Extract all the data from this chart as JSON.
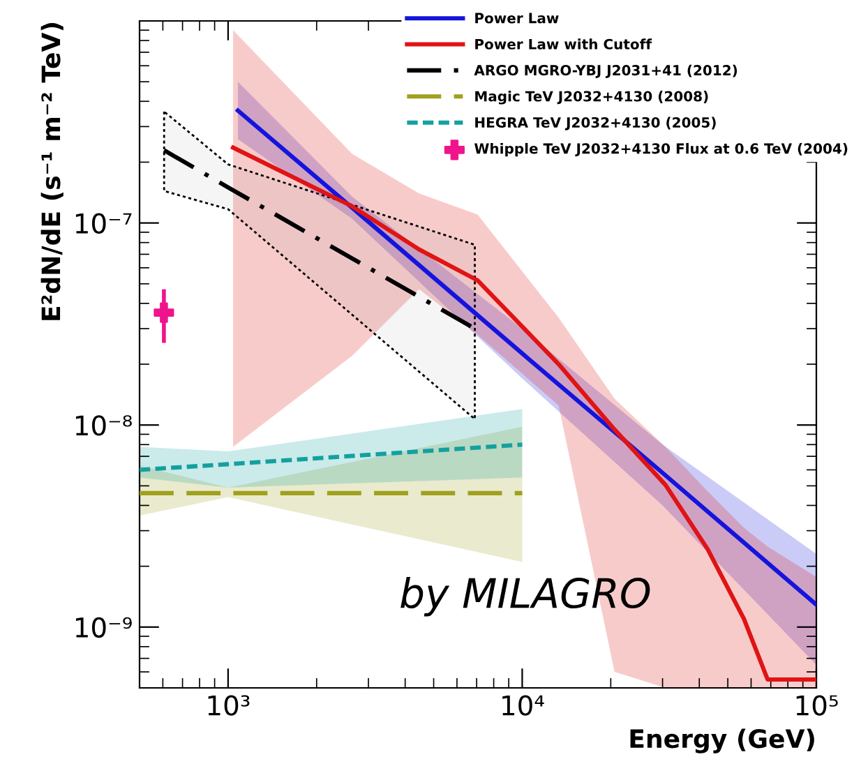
{
  "chart_data": {
    "type": "line",
    "xlabel": "Energy (GeV)",
    "ylabel": "E²dN/dE (s⁻¹ m⁻² TeV)",
    "log": "xy",
    "xlim": [
      500,
      100000
    ],
    "ylim": [
      5e-10,
      1e-06
    ],
    "xticks": [
      {
        "value": 1000,
        "label": "10³"
      },
      {
        "value": 10000,
        "label": "10⁴"
      },
      {
        "value": 100000,
        "label": "10⁵"
      }
    ],
    "yticks": [
      {
        "value": 1e-09,
        "label": "10⁻⁹"
      },
      {
        "value": 1e-08,
        "label": "10⁻⁸"
      },
      {
        "value": 1e-07,
        "label": "10⁻⁷"
      }
    ],
    "grid": false,
    "legend": "top right",
    "marker": "none",
    "annotations": [
      "by MILAGRO"
    ],
    "series": [
      {
        "name": "Power Law",
        "color": "#1414dc",
        "line_style": "solid",
        "x": [
          1080,
          2640,
          10000,
          30000,
          100000
        ],
        "values": [
          3.6e-07,
          1.19e-07,
          2.26e-08,
          5.8e-09,
          1.29e-09
        ],
        "lower": [
          2.6e-07,
          1.05e-07,
          1.7e-08,
          4e-09,
          6.5e-10
        ],
        "upper": [
          5e-07,
          1.35e-07,
          3e-08,
          8e-09,
          2.3e-09
        ]
      },
      {
        "name": "Power Law with Cutoff",
        "color": "#e01414",
        "line_style": "solid",
        "x": [
          1040,
          2640,
          4460,
          7050,
          13300,
          20600,
          30700,
          42700,
          56700,
          68300,
          100000
        ],
        "values": [
          2.36e-07,
          1.21e-07,
          7.4e-08,
          5.2e-08,
          2e-08,
          9.5e-09,
          5.05e-09,
          2.43e-09,
          1.1e-09,
          5.5e-10,
          5.5e-10
        ],
        "lower": [
          7.8e-09,
          2.2e-08,
          4.7e-08,
          2.8e-08,
          1.25e-08,
          6e-10,
          5e-10,
          5e-10,
          5e-10,
          5e-10,
          5e-10
        ],
        "upper": [
          9e-07,
          2.2e-07,
          1.4e-07,
          1.1e-07,
          3.4e-08,
          1.35e-08,
          7.8e-09,
          4.7e-09,
          3.1e-09,
          2.5e-09,
          1.77e-09
        ]
      },
      {
        "name": "ARGO MGRO-YBJ J2031+41 (2012)",
        "color": "#000000",
        "line_style": "dashdot",
        "x": [
          606,
          1000,
          6900
        ],
        "values": [
          2.29e-07,
          1.5e-07,
          3e-08
        ],
        "lower": [
          1.44e-07,
          1.17e-07,
          1.07e-08
        ],
        "upper": [
          3.56e-07,
          1.95e-07,
          7.8e-08
        ]
      },
      {
        "name": "Magic TeV J2032+4130 (2008)",
        "color": "#a0a01e",
        "line_style": "dashed",
        "x": [
          500,
          1000,
          10000
        ],
        "values": [
          4.6e-09,
          4.6e-09,
          4.6e-09
        ],
        "lower": [
          3.56e-09,
          4.4e-09,
          2.1e-09
        ],
        "upper": [
          6.3e-09,
          4.9e-09,
          9.8e-09
        ]
      },
      {
        "name": "HEGRA TeV J2032+4130 (2005)",
        "color": "#14a0a0",
        "line_style": "dotted",
        "x": [
          500,
          1000,
          10000
        ],
        "values": [
          6e-09,
          6.4e-09,
          8e-09
        ],
        "lower": [
          5.5e-09,
          4.9e-09,
          5.5e-09
        ],
        "upper": [
          7.8e-09,
          7.4e-09,
          1.2e-08
        ]
      },
      {
        "name": "Whipple TeV J2032+4130 Flux at 0.6 TeV (2004)",
        "type": "scatter",
        "marker": "cross",
        "color": "#f0148c",
        "x": [
          605
        ],
        "values": [
          3.6e-08
        ],
        "errors": [
          [
            2.55e-08,
            4.7e-08
          ]
        ]
      }
    ]
  }
}
